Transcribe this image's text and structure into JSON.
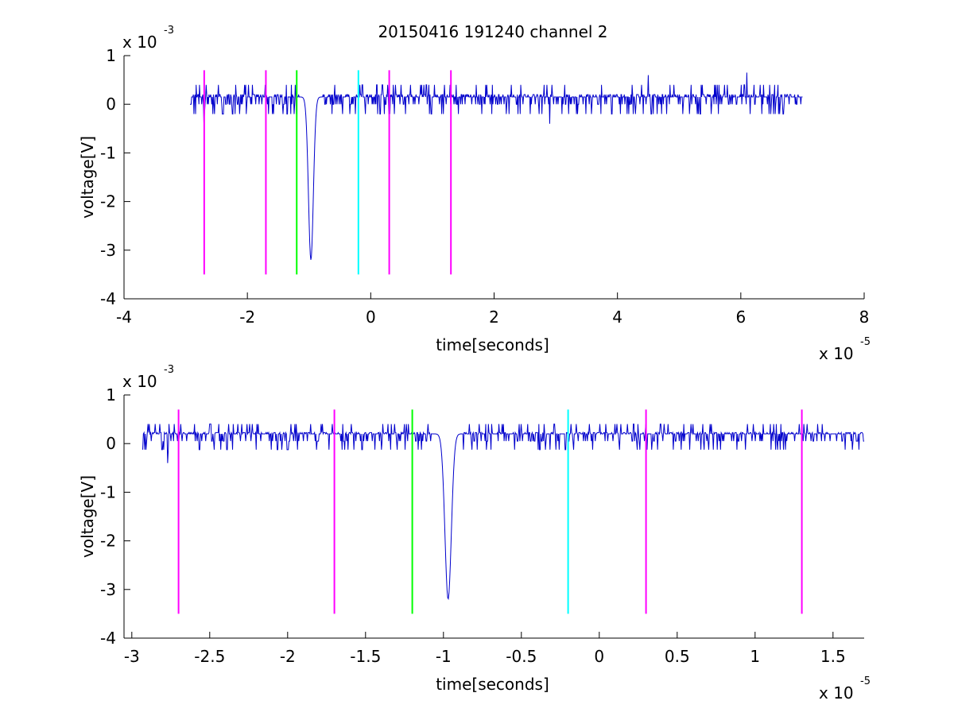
{
  "figure": {
    "title": "20150416 191240 channel 2"
  },
  "colors": {
    "trace": "#0000cc",
    "magenta": "#ff00ff",
    "green": "#00ff00",
    "cyan": "#00ffff",
    "axes": "#000000"
  },
  "chart_data": [
    {
      "type": "line",
      "title": "20150416 191240 channel 2",
      "xlabel": "time[seconds]",
      "ylabel": "voltage[V]",
      "x_exponent_label": "x 10",
      "x_exponent": "-5",
      "y_exponent_label": "x 10",
      "y_exponent": "-3",
      "xlim": [
        -4,
        8
      ],
      "ylim": [
        -4,
        1
      ],
      "x_ticks": [
        -4,
        -2,
        0,
        2,
        4,
        6,
        8
      ],
      "x_tick_labels": [
        "-4",
        "-2",
        "0",
        "2",
        "4",
        "6",
        "8"
      ],
      "y_ticks": [
        -4,
        -3,
        -2,
        -1,
        0,
        1
      ],
      "y_tick_labels": [
        "-4",
        "-3",
        "-2",
        "-1",
        "0",
        "1"
      ],
      "grid": false,
      "series": [
        {
          "kind": "noisy-signal",
          "color": "trace",
          "x_start": -2.93,
          "x_end": 7.0,
          "baseline": 0.15,
          "noise_amplitude": 0.25,
          "spike": {
            "x": -0.97,
            "min": -3.2
          },
          "notable_points": [
            [
              -2.7,
              -0.4
            ],
            [
              2.9,
              -0.4
            ],
            [
              4.5,
              0.6
            ],
            [
              6.1,
              0.65
            ]
          ]
        }
      ],
      "markers": [
        {
          "x": -2.7,
          "y_top": 0.7,
          "y_bottom": -3.5,
          "color": "magenta"
        },
        {
          "x": -1.7,
          "y_top": 0.7,
          "y_bottom": -3.5,
          "color": "magenta"
        },
        {
          "x": -1.2,
          "y_top": 0.7,
          "y_bottom": -3.5,
          "color": "green"
        },
        {
          "x": -0.2,
          "y_top": 0.7,
          "y_bottom": -3.5,
          "color": "cyan"
        },
        {
          "x": 0.3,
          "y_top": 0.7,
          "y_bottom": -3.5,
          "color": "magenta"
        },
        {
          "x": 1.3,
          "y_top": 0.7,
          "y_bottom": -3.5,
          "color": "magenta"
        }
      ]
    },
    {
      "type": "line",
      "xlabel": "time[seconds]",
      "ylabel": "voltage[V]",
      "x_exponent_label": "x 10",
      "x_exponent": "-5",
      "y_exponent_label": "x 10",
      "y_exponent": "-3",
      "xlim": [
        -3.05,
        1.7
      ],
      "ylim": [
        -4,
        1
      ],
      "x_ticks": [
        -3,
        -2.5,
        -2,
        -1.5,
        -1,
        -0.5,
        0,
        0.5,
        1,
        1.5
      ],
      "x_tick_labels": [
        "-3",
        "-2.5",
        "-2",
        "-1.5",
        "-1",
        "-0.5",
        "0",
        "0.5",
        "1",
        "1.5"
      ],
      "y_ticks": [
        -4,
        -3,
        -2,
        -1,
        0,
        1
      ],
      "y_tick_labels": [
        "-4",
        "-3",
        "-2",
        "-1",
        "0",
        "1"
      ],
      "grid": false,
      "series": [
        {
          "kind": "noisy-signal",
          "color": "trace",
          "x_start": -2.93,
          "x_end": 1.7,
          "baseline": 0.2,
          "noise_amplitude": 0.22,
          "spike": {
            "x": -0.97,
            "min": -3.2
          },
          "notable_points": [
            [
              -2.77,
              -0.4
            ],
            [
              -1.25,
              0.4
            ],
            [
              -0.5,
              0.4
            ]
          ]
        }
      ],
      "markers": [
        {
          "x": -2.7,
          "y_top": 0.7,
          "y_bottom": -3.5,
          "color": "magenta"
        },
        {
          "x": -1.7,
          "y_top": 0.7,
          "y_bottom": -3.5,
          "color": "magenta"
        },
        {
          "x": -1.2,
          "y_top": 0.7,
          "y_bottom": -3.5,
          "color": "green"
        },
        {
          "x": -0.2,
          "y_top": 0.7,
          "y_bottom": -3.5,
          "color": "cyan"
        },
        {
          "x": 0.3,
          "y_top": 0.7,
          "y_bottom": -3.5,
          "color": "magenta"
        },
        {
          "x": 1.3,
          "y_top": 0.7,
          "y_bottom": -3.5,
          "color": "magenta"
        }
      ]
    }
  ]
}
